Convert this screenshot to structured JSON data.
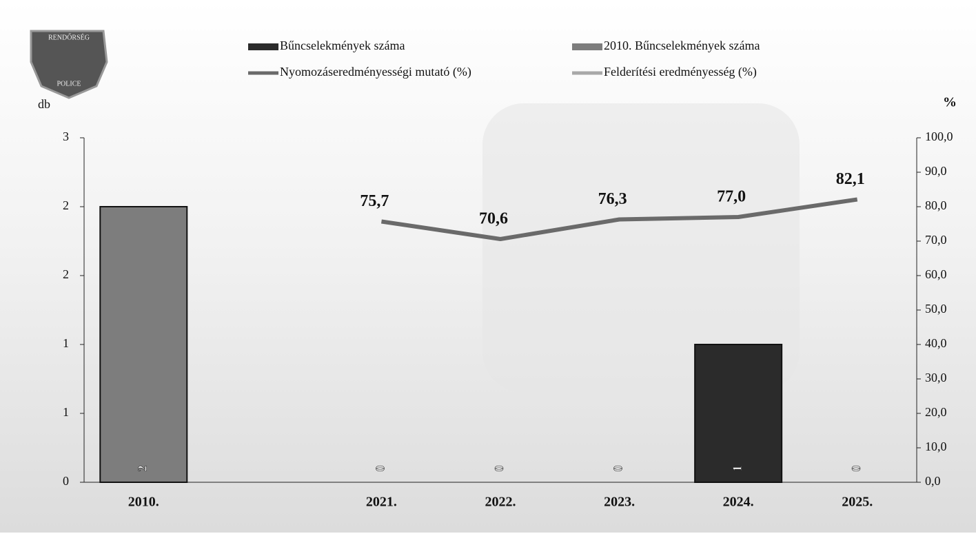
{
  "logo": {
    "top": "RENDŐRSÉG",
    "bottom": "POLICE"
  },
  "chart_data": {
    "type": "bar-line",
    "ylabel": "db",
    "y2label": "%",
    "categories": [
      "2010.",
      null,
      "2021.",
      "2022.",
      "2023.",
      "2024.",
      "2025."
    ],
    "ylim": [
      0,
      2.5
    ],
    "yticks": [
      0,
      {
        "value": 0.5,
        "label": "1"
      },
      1,
      {
        "value": 1.5,
        "label": "2"
      },
      2,
      {
        "value": 2.5,
        "label": "3"
      }
    ],
    "y2lim": [
      0,
      100
    ],
    "y2ticks": [
      {
        "value": 0,
        "label": "0,0"
      },
      {
        "value": 10,
        "label": "10,0"
      },
      {
        "value": 20,
        "label": "20,0"
      },
      {
        "value": 30,
        "label": "30,0"
      },
      {
        "value": 40,
        "label": "40,0"
      },
      {
        "value": 50,
        "label": "50,0"
      },
      {
        "value": 60,
        "label": "60,0"
      },
      {
        "value": 70,
        "label": "70,0"
      },
      {
        "value": 80,
        "label": "80,0"
      },
      {
        "value": 90,
        "label": "90,0"
      },
      {
        "value": 100,
        "label": "100,0"
      }
    ],
    "series": [
      {
        "name": "Bűncselekmények száma",
        "type": "bar",
        "color": "#2b2b2b",
        "values": [
          null,
          null,
          0,
          0,
          0,
          1,
          0
        ]
      },
      {
        "name": "2010. Bűncselekmények száma",
        "type": "bar",
        "color": "#7d7d7d",
        "values": [
          2,
          null,
          null,
          null,
          null,
          null,
          null
        ]
      },
      {
        "name": "Nyomozáseredményességi mutató (%)",
        "type": "line",
        "axis": "y2",
        "color": "#6a6a6a",
        "values": [
          null,
          null,
          75.7,
          70.6,
          76.3,
          77.0,
          82.1
        ],
        "value_labels": [
          null,
          null,
          "75,7",
          "70,6",
          "76,3",
          "77,0",
          "82,1"
        ]
      },
      {
        "name": "Felderítési eredményesség (%)",
        "type": "line",
        "axis": "y2",
        "color": "#a8a8a8",
        "values": [
          null,
          null,
          null,
          null,
          null,
          null,
          null
        ]
      }
    ]
  }
}
